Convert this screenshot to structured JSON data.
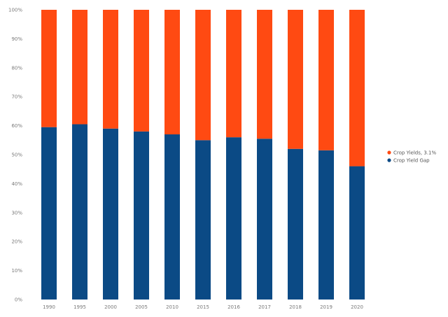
{
  "chart_data": {
    "type": "bar",
    "stacked": true,
    "categories": [
      "1990",
      "1995",
      "2000",
      "2005",
      "2010",
      "2015",
      "2016",
      "2017",
      "2018",
      "2019",
      "2020"
    ],
    "series": [
      {
        "name": "Crop Yields, 3.1%",
        "color": "#ff4a12",
        "values": [
          40.5,
          39.5,
          41.0,
          42.0,
          43.0,
          45.0,
          44.0,
          44.5,
          48.0,
          48.5,
          54.0
        ]
      },
      {
        "name": "Crop Yield Gap",
        "color": "#0b4a85",
        "values": [
          59.5,
          60.5,
          59.0,
          58.0,
          57.0,
          55.0,
          56.0,
          55.5,
          52.0,
          51.5,
          46.0
        ]
      }
    ],
    "ylim": [
      0,
      100
    ],
    "yticks": [
      "0%",
      "10%",
      "20%",
      "30%",
      "40%",
      "50%",
      "60%",
      "70%",
      "80%",
      "90%",
      "100%"
    ],
    "legend_position": "right",
    "grid": false
  }
}
